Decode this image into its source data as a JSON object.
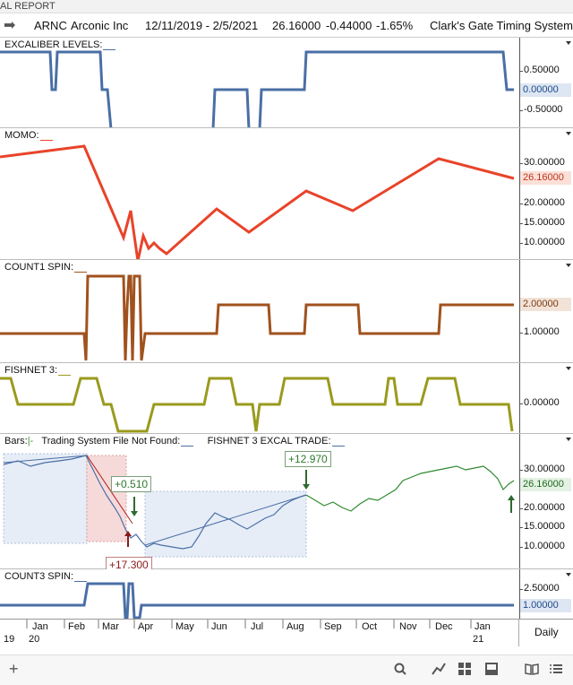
{
  "window": {
    "title": "AL REPORT"
  },
  "toolbar": {
    "symbol": "ARNC",
    "name": "Arconic Inc",
    "range": "12/11/2019 - 2/5/2021",
    "last": "26.16000",
    "change": "-0.44000",
    "pct": "-1.65%",
    "system": "Clark's Gate Timing System ©"
  },
  "panels": {
    "excaliber": {
      "label": "EXCALIBER LEVELS:",
      "ticks": [
        "0.50000",
        "-0.50000"
      ],
      "current": "0.00000",
      "color": "#4a6fa5"
    },
    "momo": {
      "label": "MOMO:",
      "ticks": [
        "30.00000",
        "20.00000",
        "15.00000",
        "10.00000"
      ],
      "current": "26.16000",
      "color": "#e8442a"
    },
    "count1": {
      "label": "COUNT1 SPIN:",
      "ticks": [
        "1.00000"
      ],
      "current": "2.00000",
      "color": "#a0521e"
    },
    "fishnet": {
      "label": "FISHNET 3:",
      "ticks": [
        "0.00000"
      ],
      "current": "",
      "color": "#9a9a1e"
    },
    "bars": {
      "label_bars": "Bars:",
      "label_mid": "Trading System File Not Found:",
      "label_right": "FISHNET 3 EXCAL TRADE:",
      "ticks": [
        "30.00000",
        "20.00000",
        "15.00000",
        "10.00000"
      ],
      "current": "26.16000",
      "annotations": [
        "+0.510",
        "+12.970",
        "+17.300"
      ]
    },
    "count3": {
      "label": "COUNT3 SPIN:",
      "ticks": [
        "2.50000"
      ],
      "current": "1.00000",
      "color": "#4a6fa5"
    }
  },
  "xaxis": {
    "months": [
      "Jan",
      "Feb",
      "Mar",
      "Apr",
      "May",
      "Jun",
      "Jul",
      "Aug",
      "Sep",
      "Oct",
      "Nov",
      "Dec",
      "Jan"
    ],
    "years": [
      "19",
      "20",
      "21"
    ],
    "period": "Daily"
  },
  "bottom_icons": [
    "plus-icon",
    "search-icon",
    "trend-icon",
    "grid-icon",
    "panel-icon",
    "book-icon",
    "menu-icon"
  ]
}
